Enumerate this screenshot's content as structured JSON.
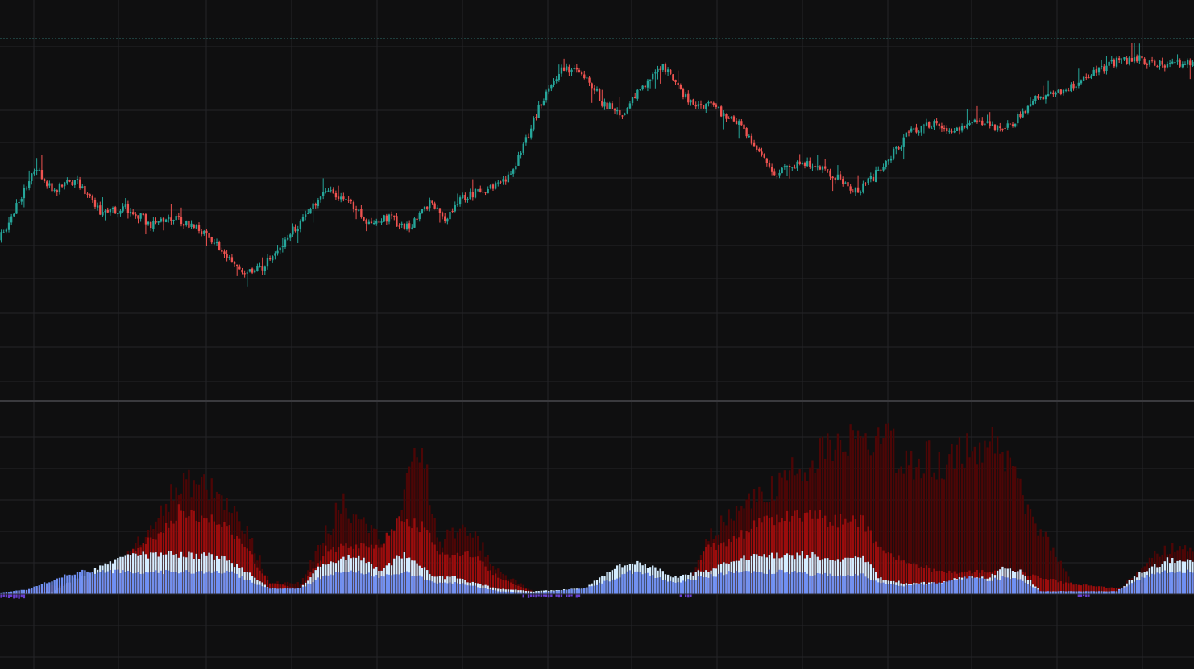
{
  "theme": {
    "background": "#0f0f10",
    "grid": "#242428",
    "separator": "#3a3a3e",
    "dotted_line": "#2d6e6a",
    "up": "#26a69a",
    "down": "#ef5350",
    "band_light": "#d4ecff",
    "band_mid": "#6f8ff2",
    "band_red": "#9b0d0d",
    "band_dark_red": "#4d0606",
    "band_purple": "#6a3fd0"
  },
  "chart_data": [
    {
      "type": "candlestick",
      "grid": true,
      "title": "",
      "xlabel": "",
      "ylabel": "",
      "ylim": [
        0,
        100
      ],
      "keypoints": [
        [
          0,
          34
        ],
        [
          6,
          44
        ],
        [
          14,
          60
        ],
        [
          22,
          52
        ],
        [
          30,
          56
        ],
        [
          40,
          44
        ],
        [
          50,
          46
        ],
        [
          60,
          40
        ],
        [
          70,
          42
        ],
        [
          82,
          36
        ],
        [
          90,
          28
        ],
        [
          96,
          22
        ],
        [
          104,
          24
        ],
        [
          112,
          33
        ],
        [
          122,
          44
        ],
        [
          130,
          52
        ],
        [
          138,
          48
        ],
        [
          146,
          40
        ],
        [
          154,
          42
        ],
        [
          162,
          38
        ],
        [
          170,
          48
        ],
        [
          176,
          42
        ],
        [
          184,
          50
        ],
        [
          192,
          52
        ],
        [
          200,
          55
        ],
        [
          206,
          66
        ],
        [
          214,
          84
        ],
        [
          222,
          96
        ],
        [
          232,
          94
        ],
        [
          238,
          84
        ],
        [
          246,
          80
        ],
        [
          252,
          88
        ],
        [
          262,
          98
        ],
        [
          272,
          84
        ],
        [
          282,
          82
        ],
        [
          292,
          76
        ],
        [
          300,
          66
        ],
        [
          306,
          58
        ],
        [
          316,
          62
        ],
        [
          326,
          60
        ],
        [
          334,
          54
        ],
        [
          340,
          52
        ],
        [
          350,
          62
        ],
        [
          360,
          74
        ],
        [
          370,
          76
        ],
        [
          378,
          74
        ],
        [
          386,
          78
        ],
        [
          394,
          74
        ],
        [
          400,
          76
        ],
        [
          410,
          86
        ],
        [
          418,
          88
        ],
        [
          428,
          92
        ],
        [
          438,
          98
        ],
        [
          448,
          100
        ],
        [
          460,
          97
        ],
        [
          470,
          98
        ]
      ],
      "noise": 1.6,
      "wick_scale": 1.4
    },
    {
      "type": "stacked-bar",
      "grid": true,
      "title": "",
      "xlabel": "",
      "ylabel": "",
      "ylim": [
        -1,
        30
      ],
      "series": [
        {
          "color": "#4d0606",
          "keypoints": [
            [
              0,
              0
            ],
            [
              20,
              0.5
            ],
            [
              40,
              3
            ],
            [
              50,
              7
            ],
            [
              60,
              12
            ],
            [
              70,
              20
            ],
            [
              80,
              20
            ],
            [
              90,
              17
            ],
            [
              100,
              8
            ],
            [
              106,
              2
            ],
            [
              118,
              2
            ],
            [
              126,
              9
            ],
            [
              134,
              16
            ],
            [
              140,
              14
            ],
            [
              150,
              10
            ],
            [
              156,
              8
            ],
            [
              162,
              25
            ],
            [
              168,
              22
            ],
            [
              172,
              9
            ],
            [
              178,
              11
            ],
            [
              186,
              11
            ],
            [
              196,
              4
            ],
            [
              210,
              0.5
            ],
            [
              240,
              0
            ],
            [
              270,
              0
            ],
            [
              276,
              8
            ],
            [
              282,
              12
            ],
            [
              296,
              16
            ],
            [
              306,
              20
            ],
            [
              320,
              24
            ],
            [
              336,
              28
            ],
            [
              348,
              28
            ],
            [
              356,
              24
            ],
            [
              372,
              24
            ],
            [
              384,
              27
            ],
            [
              390,
              28
            ],
            [
              396,
              24
            ],
            [
              404,
              16
            ],
            [
              412,
              10
            ],
            [
              424,
              0.5
            ],
            [
              440,
              0.2
            ],
            [
              448,
              4
            ],
            [
              458,
              8
            ],
            [
              470,
              8
            ]
          ]
        },
        {
          "color": "#9b0d0d",
          "keypoints": [
            [
              0,
              0
            ],
            [
              40,
              3
            ],
            [
              50,
              7
            ],
            [
              60,
              10
            ],
            [
              70,
              15
            ],
            [
              80,
              14
            ],
            [
              90,
              12
            ],
            [
              100,
              6
            ],
            [
              106,
              2
            ],
            [
              118,
              1
            ],
            [
              128,
              8
            ],
            [
              140,
              9
            ],
            [
              150,
              9
            ],
            [
              158,
              14
            ],
            [
              166,
              12
            ],
            [
              174,
              7
            ],
            [
              186,
              7
            ],
            [
              196,
              3
            ],
            [
              210,
              0.3
            ],
            [
              270,
              0
            ],
            [
              278,
              8
            ],
            [
              290,
              10
            ],
            [
              300,
              13
            ],
            [
              310,
              14
            ],
            [
              320,
              14
            ],
            [
              330,
              13
            ],
            [
              340,
              13
            ],
            [
              346,
              8
            ],
            [
              356,
              6
            ],
            [
              370,
              4
            ],
            [
              384,
              4
            ],
            [
              400,
              4
            ],
            [
              420,
              2
            ],
            [
              440,
              1
            ],
            [
              460,
              3
            ],
            [
              470,
              3
            ]
          ]
        },
        {
          "color": "#d4ecff",
          "keypoints": [
            [
              0,
              0
            ],
            [
              20,
              0.5
            ],
            [
              30,
              3
            ],
            [
              40,
              5
            ],
            [
              50,
              7
            ],
            [
              60,
              7
            ],
            [
              70,
              7
            ],
            [
              80,
              7
            ],
            [
              90,
              6
            ],
            [
              100,
              3
            ],
            [
              106,
              1
            ],
            [
              118,
              1
            ],
            [
              126,
              5
            ],
            [
              134,
              6
            ],
            [
              140,
              7
            ],
            [
              150,
              4
            ],
            [
              158,
              7
            ],
            [
              164,
              6
            ],
            [
              170,
              3
            ],
            [
              180,
              3
            ],
            [
              186,
              2
            ],
            [
              196,
              1
            ],
            [
              210,
              0.5
            ],
            [
              230,
              1
            ],
            [
              240,
              4
            ],
            [
              248,
              6
            ],
            [
              256,
              5
            ],
            [
              266,
              3
            ],
            [
              276,
              4
            ],
            [
              290,
              6
            ],
            [
              300,
              7
            ],
            [
              310,
              7
            ],
            [
              320,
              7
            ],
            [
              330,
              6
            ],
            [
              340,
              7
            ],
            [
              346,
              3
            ],
            [
              356,
              2
            ],
            [
              370,
              2
            ],
            [
              380,
              3
            ],
            [
              390,
              3
            ],
            [
              396,
              5
            ],
            [
              402,
              4
            ],
            [
              410,
              0.5
            ],
            [
              440,
              0.5
            ],
            [
              450,
              4
            ],
            [
              460,
              6
            ],
            [
              470,
              6
            ]
          ]
        },
        {
          "color": "#6f8ff2",
          "keypoints": [
            [
              0,
              0.3
            ],
            [
              10,
              0.8
            ],
            [
              20,
              2.5
            ],
            [
              30,
              4
            ],
            [
              40,
              4
            ],
            [
              50,
              4
            ],
            [
              60,
              4
            ],
            [
              70,
              4
            ],
            [
              80,
              4
            ],
            [
              90,
              4
            ],
            [
              100,
              2
            ],
            [
              106,
              1
            ],
            [
              118,
              1
            ],
            [
              126,
              3
            ],
            [
              134,
              4
            ],
            [
              140,
              4
            ],
            [
              150,
              3
            ],
            [
              158,
              4
            ],
            [
              166,
              3
            ],
            [
              172,
              2
            ],
            [
              180,
              2
            ],
            [
              186,
              1.5
            ],
            [
              196,
              0.5
            ],
            [
              210,
              0.3
            ],
            [
              230,
              1
            ],
            [
              240,
              2.5
            ],
            [
              248,
              4
            ],
            [
              256,
              3.5
            ],
            [
              266,
              2
            ],
            [
              276,
              3
            ],
            [
              290,
              4
            ],
            [
              300,
              4
            ],
            [
              310,
              4
            ],
            [
              320,
              3.5
            ],
            [
              330,
              3.5
            ],
            [
              340,
              3.5
            ],
            [
              346,
              2
            ],
            [
              356,
              1.5
            ],
            [
              370,
              2
            ],
            [
              380,
              3
            ],
            [
              390,
              2.5
            ],
            [
              396,
              3
            ],
            [
              402,
              2.5
            ],
            [
              410,
              0.5
            ],
            [
              440,
              0.5
            ],
            [
              450,
              3
            ],
            [
              460,
              4
            ],
            [
              470,
              4
            ]
          ]
        }
      ],
      "negative_series": {
        "color": "#6a3fd0",
        "ranges": [
          [
            0,
            9,
            0.7
          ],
          [
            206,
            228,
            0.6
          ],
          [
            266,
            272,
            0.6
          ],
          [
            424,
            430,
            0.5
          ]
        ]
      }
    }
  ]
}
